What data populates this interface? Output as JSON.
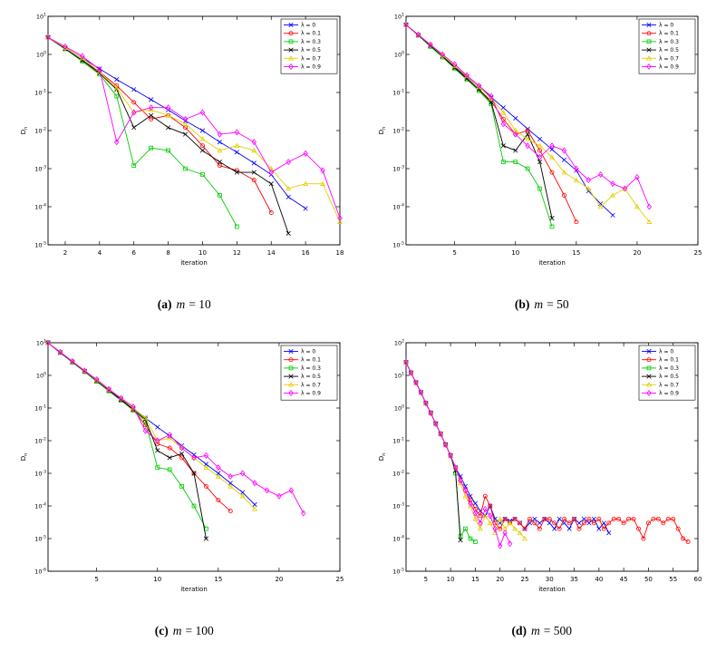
{
  "page": {
    "background": "#ffffff"
  },
  "chart_data": [
    {
      "id": "a",
      "type": "line",
      "caption": {
        "tag": "(a)",
        "var": "m",
        "rest": "= 10"
      },
      "xlabel": "iteration",
      "ylabel": "D",
      "ylabel_sub": "n",
      "xlim": [
        1,
        18
      ],
      "xticks": [
        2,
        4,
        6,
        8,
        10,
        12,
        14,
        16,
        18
      ],
      "ylog_exp_range": [
        1,
        -5
      ],
      "legend_position": "top-right",
      "grid": false,
      "series": [
        {
          "label": "λ = 0",
          "color": "#0000FF",
          "marker": "x",
          "x_start": 1,
          "y": [
            2.8,
            1.5,
            0.8,
            0.42,
            0.22,
            0.12,
            0.065,
            0.035,
            0.018,
            0.01,
            0.005,
            0.0027,
            0.0014,
            0.0007,
            0.00018,
            9e-05
          ]
        },
        {
          "label": "λ = 0.1",
          "color": "#FF0000",
          "marker": "o",
          "x_start": 1,
          "y": [
            2.8,
            1.4,
            0.7,
            0.35,
            0.15,
            0.055,
            0.02,
            0.025,
            0.012,
            0.004,
            0.0012,
            0.0009,
            0.0005,
            7e-05
          ]
        },
        {
          "label": "λ = 0.3",
          "color": "#00CC00",
          "marker": "s",
          "x_start": 1,
          "y": [
            2.8,
            1.4,
            0.65,
            0.3,
            0.08,
            0.0012,
            0.0035,
            0.003,
            0.001,
            0.0007,
            0.0002,
            3e-05
          ]
        },
        {
          "label": "λ = 0.5",
          "color": "#000000",
          "marker": "x",
          "x_start": 1,
          "y": [
            2.8,
            1.4,
            0.7,
            0.32,
            0.12,
            0.012,
            0.025,
            0.012,
            0.008,
            0.003,
            0.0015,
            0.0008,
            0.0008,
            0.0004,
            2e-05
          ]
        },
        {
          "label": "λ = 0.7",
          "color": "#E0D000",
          "marker": "^",
          "x_start": 1,
          "y": [
            2.8,
            1.5,
            0.8,
            0.35,
            0.13,
            0.03,
            0.035,
            0.025,
            0.015,
            0.006,
            0.003,
            0.004,
            0.003,
            0.001,
            0.0003,
            0.0004,
            0.0004,
            4e-05
          ]
        },
        {
          "label": "λ = 0.9",
          "color": "#FF00FF",
          "marker": "d",
          "x_start": 1,
          "y": [
            2.8,
            1.6,
            0.9,
            0.4,
            0.005,
            0.03,
            0.04,
            0.04,
            0.02,
            0.03,
            0.008,
            0.009,
            0.005,
            0.0008,
            0.0015,
            0.0025,
            0.0009,
            5e-05
          ]
        }
      ]
    },
    {
      "id": "b",
      "type": "line",
      "caption": {
        "tag": "(b)",
        "var": "m",
        "rest": "= 50"
      },
      "xlabel": "iteration",
      "ylabel": "D",
      "ylabel_sub": "n",
      "xlim": [
        1,
        25
      ],
      "xticks": [
        5,
        10,
        15,
        20,
        25
      ],
      "ylog_exp_range": [
        1,
        -5
      ],
      "legend_position": "top-right",
      "grid": false,
      "series": [
        {
          "label": "λ = 0",
          "color": "#0000FF",
          "marker": "x",
          "x_start": 1,
          "y": [
            6,
            3.2,
            1.7,
            0.9,
            0.48,
            0.26,
            0.14,
            0.075,
            0.04,
            0.021,
            0.011,
            0.006,
            0.0032,
            0.0017,
            0.0009,
            0.00026,
            0.00012,
            6e-05
          ]
        },
        {
          "label": "λ = 0.1",
          "color": "#FF0000",
          "marker": "o",
          "x_start": 1,
          "y": [
            6,
            3.2,
            1.7,
            0.85,
            0.45,
            0.24,
            0.12,
            0.06,
            0.02,
            0.008,
            0.01,
            0.003,
            0.0008,
            0.0002,
            4e-05
          ]
        },
        {
          "label": "λ = 0.3",
          "color": "#00CC00",
          "marker": "s",
          "x_start": 1,
          "y": [
            6,
            3.2,
            1.6,
            0.85,
            0.42,
            0.22,
            0.11,
            0.05,
            0.0015,
            0.0015,
            0.001,
            0.0003,
            3e-05
          ]
        },
        {
          "label": "λ = 0.5",
          "color": "#000000",
          "marker": "x",
          "x_start": 1,
          "y": [
            6,
            3.2,
            1.7,
            0.9,
            0.45,
            0.23,
            0.12,
            0.055,
            0.004,
            0.003,
            0.008,
            0.0015,
            5e-05
          ]
        },
        {
          "label": "λ = 0.7",
          "color": "#E0D000",
          "marker": "^",
          "x_start": 1,
          "y": [
            6,
            3.3,
            1.8,
            0.95,
            0.5,
            0.27,
            0.14,
            0.07,
            0.03,
            0.01,
            0.006,
            0.004,
            0.002,
            0.0008,
            0.0005,
            0.0003,
            0.0001,
            0.0002,
            0.0003,
            0.0001,
            4e-05
          ]
        },
        {
          "label": "λ = 0.9",
          "color": "#FF00FF",
          "marker": "d",
          "x_start": 1,
          "y": [
            6,
            3.3,
            1.8,
            1,
            0.55,
            0.28,
            0.15,
            0.08,
            0.015,
            0.008,
            0.004,
            0.002,
            0.004,
            0.003,
            0.001,
            0.0005,
            0.0007,
            0.0004,
            0.0003,
            0.0006,
            0.0001
          ]
        }
      ]
    },
    {
      "id": "c",
      "type": "line",
      "caption": {
        "tag": "(c)",
        "var": "m",
        "rest": "= 100"
      },
      "xlabel": "iteration",
      "ylabel": "D",
      "ylabel_sub": "n",
      "xlim": [
        1,
        25
      ],
      "xticks": [
        5,
        10,
        15,
        20,
        25
      ],
      "ylog_exp_range": [
        1,
        -6
      ],
      "legend_position": "top-right",
      "grid": false,
      "series": [
        {
          "label": "λ = 0",
          "color": "#0000FF",
          "marker": "x",
          "x_start": 1,
          "y": [
            10,
            5,
            2.6,
            1.35,
            0.7,
            0.36,
            0.19,
            0.1,
            0.05,
            0.026,
            0.014,
            0.007,
            0.0037,
            0.0019,
            0.001,
            0.0005,
            0.00026,
            0.00011
          ]
        },
        {
          "label": "λ = 0.1",
          "color": "#FF0000",
          "marker": "o",
          "x_start": 1,
          "y": [
            10,
            5,
            2.6,
            1.3,
            0.68,
            0.35,
            0.18,
            0.09,
            0.03,
            0.008,
            0.006,
            0.003,
            0.001,
            0.0004,
            0.00015,
            7e-05
          ]
        },
        {
          "label": "λ = 0.3",
          "color": "#00CC00",
          "marker": "s",
          "x_start": 1,
          "y": [
            10,
            5,
            2.5,
            1.3,
            0.65,
            0.33,
            0.17,
            0.085,
            0.04,
            0.0015,
            0.0013,
            0.0004,
            0.0001,
            2e-05
          ]
        },
        {
          "label": "λ = 0.5",
          "color": "#000000",
          "marker": "x",
          "x_start": 1,
          "y": [
            10,
            5,
            2.6,
            1.35,
            0.68,
            0.35,
            0.18,
            0.09,
            0.045,
            0.005,
            0.003,
            0.004,
            0.001,
            1e-05
          ]
        },
        {
          "label": "λ = 0.7",
          "color": "#E0D000",
          "marker": "^",
          "x_start": 1,
          "y": [
            10,
            5.2,
            2.7,
            1.4,
            0.72,
            0.37,
            0.2,
            0.1,
            0.05,
            0.01,
            0.012,
            0.006,
            0.003,
            0.0015,
            0.0008,
            0.0004,
            0.0002,
            8e-05
          ]
        },
        {
          "label": "λ = 0.9",
          "color": "#FF00FF",
          "marker": "d",
          "x_start": 1,
          "y": [
            10,
            5.2,
            2.7,
            1.4,
            0.75,
            0.38,
            0.2,
            0.11,
            0.02,
            0.01,
            0.015,
            0.006,
            0.003,
            0.0035,
            0.0015,
            0.0008,
            0.001,
            0.0005,
            0.0003,
            0.0002,
            0.0003,
            6e-05
          ]
        }
      ]
    },
    {
      "id": "d",
      "type": "line",
      "caption": {
        "tag": "(d)",
        "var": "m",
        "rest": "= 500"
      },
      "xlabel": "iteration",
      "ylabel": "D",
      "ylabel_sub": "n",
      "xlim": [
        1,
        60
      ],
      "xticks": [
        5,
        10,
        15,
        20,
        25,
        30,
        35,
        40,
        45,
        50,
        55,
        60
      ],
      "ylog_exp_range": [
        2,
        -5
      ],
      "legend_position": "top-right",
      "grid": false,
      "series": [
        {
          "label": "λ = 0",
          "color": "#0000FF",
          "marker": "x",
          "x_start": 1,
          "y": [
            25,
            12,
            6,
            3,
            1.4,
            0.7,
            0.33,
            0.16,
            0.075,
            0.035,
            0.015,
            0.008,
            0.004,
            0.002,
            0.0012,
            0.0007,
            0.0005,
            0.001,
            0.0004,
            0.0003,
            0.0004,
            0.00035,
            0.0004,
            0.0003,
            0.0002,
            0.0003,
            0.0004,
            0.0003,
            0.0004,
            0.0003,
            0.0002,
            0.0004,
            0.0003,
            0.0002,
            0.0004,
            0.0003,
            0.0004,
            0.0003,
            0.0004,
            0.0002,
            0.0003,
            0.00015
          ]
        },
        {
          "label": "λ = 0.1",
          "color": "#FF0000",
          "marker": "o",
          "x_start": 1,
          "y": [
            25,
            12,
            6,
            3,
            1.4,
            0.7,
            0.33,
            0.16,
            0.075,
            0.035,
            0.015,
            0.006,
            0.003,
            0.0015,
            0.0008,
            0.0005,
            0.002,
            0.001,
            0.0003,
            0.0002,
            0.0004,
            0.0003,
            0.0004,
            0.0003,
            0.0002,
            0.0004,
            0.0003,
            0.0002,
            0.0004,
            0.0004,
            0.0003,
            0.0002,
            0.0004,
            0.0003,
            0.0004,
            0.0002,
            0.0003,
            0.0004,
            0.0003,
            0.0004,
            0.0002,
            0.0003,
            0.0004,
            0.0004,
            0.0003,
            0.0004,
            0.0004,
            0.0002,
            0.0001,
            0.0003,
            0.0004,
            0.0004,
            0.0003,
            0.0004,
            0.0004,
            0.0002,
            0.0001,
            8e-05
          ]
        },
        {
          "label": "λ = 0.3",
          "color": "#00CC00",
          "marker": "s",
          "x_start": 1,
          "y": [
            25,
            12,
            6,
            3,
            1.4,
            0.7,
            0.33,
            0.16,
            0.075,
            0.035,
            0.01,
            0.00012,
            0.0002,
            0.0001,
            8e-05
          ]
        },
        {
          "label": "λ = 0.5",
          "color": "#000000",
          "marker": "x",
          "x_start": 1,
          "y": [
            25,
            12,
            6,
            3,
            1.4,
            0.7,
            0.33,
            0.16,
            0.075,
            0.035,
            0.012,
            9e-05
          ]
        },
        {
          "label": "λ = 0.7",
          "color": "#E0D000",
          "marker": "^",
          "x_start": 1,
          "y": [
            25,
            12,
            6,
            3,
            1.4,
            0.7,
            0.33,
            0.16,
            0.075,
            0.035,
            0.015,
            0.005,
            0.002,
            0.001,
            0.0004,
            0.0002,
            0.0005,
            0.0003,
            0.00015,
            0.0004,
            0.0002,
            0.0003,
            0.0002,
            0.00015,
            0.0001
          ]
        },
        {
          "label": "λ = 0.9",
          "color": "#FF00FF",
          "marker": "d",
          "x_start": 1,
          "y": [
            25,
            12,
            6,
            3,
            1.4,
            0.7,
            0.33,
            0.16,
            0.075,
            0.035,
            0.015,
            0.006,
            0.003,
            0.0012,
            0.0006,
            0.0003,
            0.0008,
            0.0005,
            0.0002,
            6e-05,
            0.00015,
            7e-05
          ]
        }
      ]
    }
  ]
}
